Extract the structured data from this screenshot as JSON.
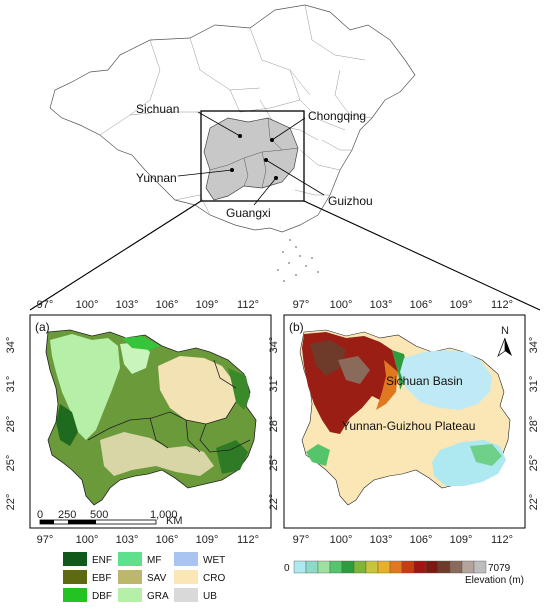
{
  "overview": {
    "provinces": [
      "Sichuan",
      "Chongqing",
      "Yunnan",
      "Guizhou",
      "Guangxi"
    ]
  },
  "panel_a": {
    "label": "(a)",
    "lon_ticks": [
      "97°",
      "100°",
      "103°",
      "106°",
      "109°",
      "112°"
    ],
    "lat_ticks": [
      "34°",
      "31°",
      "28°",
      "25°",
      "22°"
    ],
    "scale_bar": {
      "labels": [
        "0",
        "250",
        "500",
        "1,000"
      ],
      "unit": "KM"
    }
  },
  "panel_b": {
    "label": "(b)",
    "lon_ticks": [
      "97°",
      "100°",
      "103°",
      "106°",
      "109°",
      "112°"
    ],
    "lat_ticks": [
      "34°",
      "31°",
      "28°",
      "25°",
      "22°"
    ],
    "regions": [
      "Sichuan Basin",
      "Yunnan-Guizhou Plateau"
    ],
    "north": "N"
  },
  "landcover_legend": [
    {
      "code": "ENF",
      "color": "#0f5a1a"
    },
    {
      "code": "MF",
      "color": "#5ee08c"
    },
    {
      "code": "WET",
      "color": "#a9c4f0"
    },
    {
      "code": "EBF",
      "color": "#5e6a10"
    },
    {
      "code": "SAV",
      "color": "#bdb76b"
    },
    {
      "code": "CRO",
      "color": "#fbe7b6"
    },
    {
      "code": "DBF",
      "color": "#22c322"
    },
    {
      "code": "GRA",
      "color": "#b6f0a8"
    },
    {
      "code": "UB",
      "color": "#d9d9d9"
    }
  ],
  "elevation_legend": {
    "min": "0",
    "max": "7079",
    "title": "Elevation (m)",
    "colors": [
      "#aee8f0",
      "#8fd9c8",
      "#9fe0a0",
      "#56c46a",
      "#2d9c3c",
      "#7eb63a",
      "#c8c43c",
      "#e8b02a",
      "#e07820",
      "#c83c14",
      "#a41410",
      "#7c1a10",
      "#6e3a2a",
      "#8a6a5a",
      "#b4a49c",
      "#bdbdbd"
    ]
  }
}
